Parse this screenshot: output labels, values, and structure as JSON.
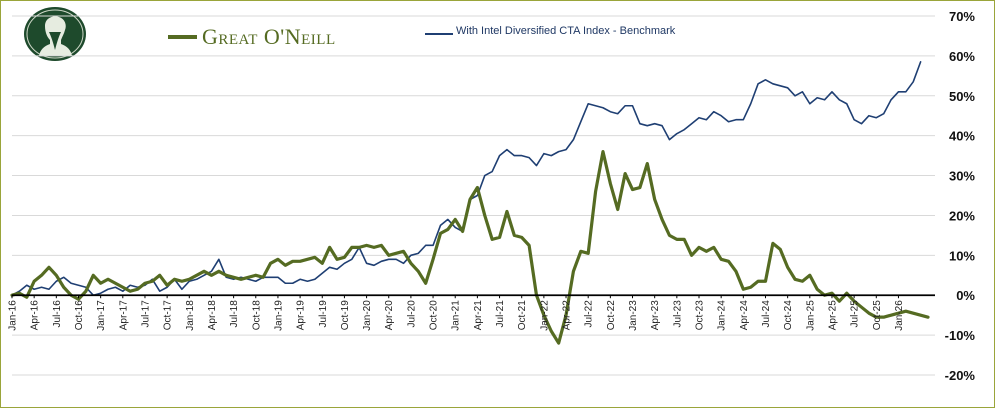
{
  "legend": {
    "series1_name": "Great O'Neill",
    "series2_name": "With Intel Diversified CTA Index - Benchmark"
  },
  "colors": {
    "great_oneill": "#556b22",
    "benchmark": "#1f3f73",
    "frame": "#9aa53a",
    "logo_bg": "#1e4a2c"
  },
  "logo": {
    "icon": "portrait-medallion-icon"
  },
  "chart_data": {
    "type": "line",
    "title": "",
    "xlabel": "",
    "ylabel": "",
    "ylim": [
      -20,
      70
    ],
    "y_ticks": [
      "-20%",
      "-10%",
      "0%",
      "10%",
      "20%",
      "30%",
      "40%",
      "50%",
      "60%",
      "70%"
    ],
    "x_tick_labels": [
      "Jan-16",
      "Apr-16",
      "Jul-16",
      "Oct-16",
      "Jan-17",
      "Apr-17",
      "Jul-17",
      "Oct-17",
      "Jan-18",
      "Apr-18",
      "Jul-18",
      "Oct-18",
      "Jan-19",
      "Apr-19",
      "Jul-19",
      "Oct-19",
      "Jan-20",
      "Apr-20",
      "Jul-20",
      "Oct-20",
      "Jan-21",
      "Apr-21",
      "Jul-21",
      "Oct-21",
      "Jan-22",
      "Apr-22",
      "Jul-22",
      "Oct-22",
      "Jan-23",
      "Apr-23",
      "Jul-23",
      "Oct-23",
      "Jan-24",
      "Apr-24",
      "Jul-24",
      "Oct-24",
      "Jan-25",
      "Apr-25",
      "Jul-25",
      "Oct-25",
      "Jan-26"
    ],
    "grid": "horizontal",
    "legend_position": "top",
    "series": [
      {
        "name": "Great O'Neill",
        "values": [
          0,
          0.5,
          -0.5,
          3.5,
          5,
          7,
          5,
          2,
          0,
          -1,
          1,
          5,
          3,
          4,
          3,
          2,
          1,
          1.5,
          3,
          3.5,
          5,
          2.5,
          4,
          3.5,
          4,
          5,
          6,
          5,
          6,
          5,
          4.5,
          4,
          4.5,
          5,
          4.5,
          8,
          9,
          7.5,
          8.5,
          8.5,
          9,
          9.5,
          8,
          12,
          9,
          9.5,
          12,
          12,
          12.5,
          12,
          12.5,
          10,
          10.5,
          11,
          8,
          6,
          3,
          9,
          15.5,
          16.5,
          19,
          16,
          24,
          27,
          20,
          14,
          14.5,
          21,
          15,
          14.5,
          12.5,
          0,
          -5,
          -9,
          -12,
          -5,
          6,
          11,
          10.5,
          26,
          36,
          28,
          21.5,
          30.5,
          26.5,
          27,
          33,
          24,
          19,
          15,
          14,
          14,
          10,
          12,
          11,
          12,
          9,
          8.5,
          6,
          1.5,
          2,
          3.5,
          3.5,
          13,
          11.5,
          7,
          4,
          3.5,
          5,
          1.5,
          0,
          0.5,
          -1.5,
          0.5,
          -1.5,
          -3,
          -4.5,
          -5.5,
          -5.5,
          -5,
          -4.5,
          -4,
          -4.5,
          -5,
          -5.5
        ]
      },
      {
        "name": "With Intel Diversified CTA Index - Benchmark",
        "values": [
          0,
          1,
          2.5,
          1.5,
          2,
          1.5,
          3.5,
          4.5,
          3,
          2.5,
          2,
          0,
          0.5,
          1.5,
          2,
          1,
          2.5,
          2,
          2.5,
          4,
          1,
          2,
          4,
          1.5,
          3.5,
          4,
          5,
          6,
          9,
          4.5,
          4,
          4.5,
          4,
          3.5,
          4.5,
          4.5,
          4.5,
          3,
          3,
          4,
          3.5,
          4,
          5.5,
          7,
          6.5,
          8,
          9,
          12,
          8,
          7.5,
          8.5,
          9,
          9,
          8,
          10,
          10.5,
          12.5,
          12.5,
          17.5,
          19,
          17,
          16,
          24,
          25,
          30,
          31,
          35,
          36.5,
          35,
          35,
          34.5,
          32.5,
          35.5,
          35,
          36,
          36.5,
          39,
          43.5,
          48,
          47.5,
          47,
          46,
          45.5,
          47.5,
          47.5,
          43,
          42.5,
          43,
          42.5,
          39,
          40.5,
          41.5,
          43,
          44.5,
          44,
          46,
          45,
          43.5,
          44,
          44,
          48,
          53,
          54,
          53,
          52.5,
          52,
          50,
          51,
          48,
          49.5,
          49,
          51,
          49,
          48,
          44,
          43,
          45,
          44.5,
          45.5,
          49,
          51,
          51,
          53.5,
          58.5
        ]
      }
    ]
  }
}
